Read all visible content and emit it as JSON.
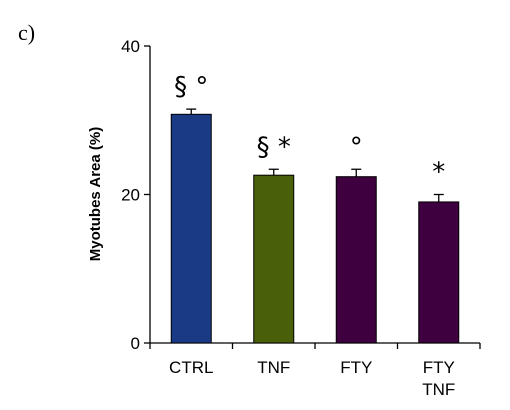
{
  "panel_label": "c)",
  "chart_data": {
    "type": "bar",
    "categories": [
      "CTRL",
      "TNF",
      "FTY",
      "FTY TNF"
    ],
    "category_lines": [
      [
        "CTRL"
      ],
      [
        "TNF"
      ],
      [
        "FTY"
      ],
      [
        "FTY",
        "TNF"
      ]
    ],
    "values": [
      30.8,
      22.6,
      22.4,
      19.0
    ],
    "errors": [
      0.7,
      0.8,
      1.0,
      1.0
    ],
    "colors": [
      "#1b3a86",
      "#4a5f0a",
      "#3f0040",
      "#3f0040"
    ],
    "annotations": [
      "§ °",
      "§ *",
      "°",
      "*"
    ],
    "xlabel": "",
    "ylabel": "Myotubes Area (%)",
    "yticks": [
      0,
      20,
      40
    ],
    "ylim": [
      0,
      40
    ],
    "grid": false
  }
}
